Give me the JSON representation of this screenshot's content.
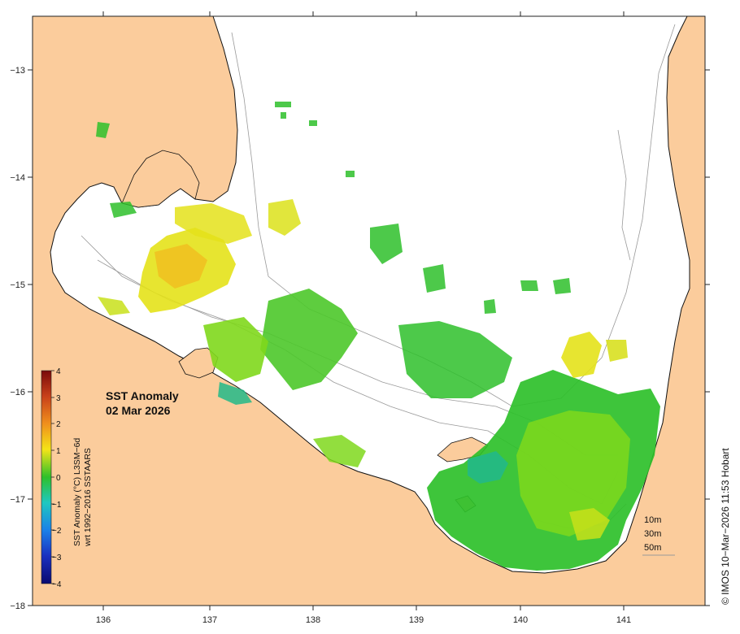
{
  "map": {
    "lon_ticks": [
      "136",
      "137",
      "138",
      "139",
      "140",
      "141"
    ],
    "lat_ticks": [
      "−13",
      "−14",
      "−15",
      "−16",
      "−17",
      "−18"
    ],
    "colors": {
      "land": "#fbcc9c",
      "ocean": "#ffffff",
      "anomaly_green": "#2ec02a",
      "anomaly_lightgreen": "#7fd81c",
      "anomaly_yellow": "#e4e21a",
      "anomaly_orange": "#f0c020",
      "anomaly_teal": "#22b888"
    }
  },
  "title": {
    "line1": "SST Anomaly",
    "line2": "02 Mar 2026"
  },
  "colorbar": {
    "ticks": [
      "4",
      "3",
      "2",
      "1",
      "0",
      "−1",
      "−2",
      "−3",
      "−4"
    ],
    "label_line1": "SST Anomaly (°C) L3SM−6d",
    "label_line2": "wrt 1992−2016 SSTAARS"
  },
  "depth_legend": [
    "10m",
    "30m",
    "50m"
  ],
  "credit": "© IMOS 10−Mar−2026 11:53 Hobart"
}
